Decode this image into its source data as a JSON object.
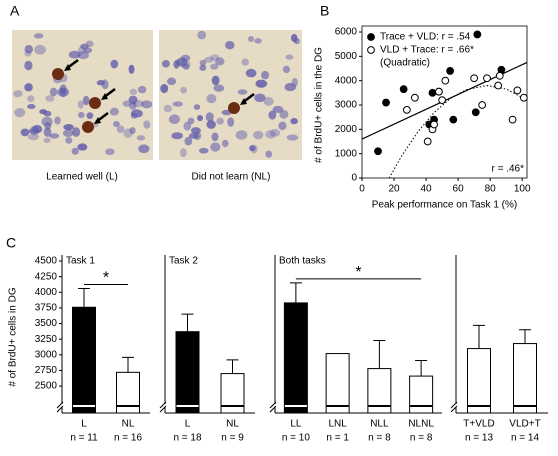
{
  "panel_labels": [
    "A",
    "B",
    "C"
  ],
  "images": {
    "captions": [
      "Learned well (L)",
      "Did not learn (NL)"
    ]
  },
  "chart_data": [
    {
      "type": "scatter",
      "xlabel": "Peak performance on Task 1 (%)",
      "ylabel": "# of BrdU+ cells in the DG",
      "xlim": [
        0,
        103
      ],
      "ylim": [
        0,
        6000
      ],
      "xticks": [
        0,
        20,
        40,
        60,
        80,
        100
      ],
      "yticks": [
        0,
        1000,
        2000,
        3000,
        4000,
        5000,
        6000
      ],
      "legend": "upper left",
      "series": [
        {
          "name": "Trace + VLD: r = .54",
          "color": "#000000",
          "marker": "filled",
          "x": [
            10,
            15,
            26,
            42,
            45,
            44,
            48,
            55,
            57,
            72,
            71,
            87
          ],
          "values": [
            1100,
            3100,
            3650,
            2200,
            2400,
            3500,
            3550,
            4400,
            2400,
            5900,
            2700,
            4450
          ]
        },
        {
          "name": "VLD + Trace: r = .66*",
          "color": "#000000",
          "marker": "open",
          "x": [
            28,
            33,
            41,
            44,
            45,
            48,
            50,
            52,
            70,
            75,
            78,
            85,
            86,
            94,
            97,
            101
          ],
          "values": [
            2800,
            3300,
            1500,
            2000,
            2200,
            3550,
            3200,
            4000,
            4100,
            3000,
            4100,
            3800,
            4200,
            2400,
            3600,
            3300
          ]
        }
      ],
      "legend_note": "(Quadratic)",
      "annotation": "r = .46*",
      "fits": [
        {
          "style": "solid",
          "x": [
            0,
            103
          ],
          "values": [
            1600,
            4750
          ]
        },
        {
          "style": "dotted",
          "x": [
            17,
            25,
            35,
            45,
            55,
            65,
            78,
            90,
            100
          ],
          "values": [
            0,
            935,
            1914,
            2689,
            3260,
            3628,
            3800,
            3653,
            3306
          ]
        }
      ]
    },
    {
      "type": "bar",
      "title": "Task 1",
      "ylabel": "# of BrdU+ cells in DG",
      "ylim": [
        2070,
        4500
      ],
      "yticks": [
        2500,
        2750,
        3000,
        3250,
        3500,
        3750,
        4000,
        4250,
        4500
      ],
      "categories": [
        "L",
        "NL"
      ],
      "n_labels": [
        "n = 11",
        "n = 16"
      ],
      "values": [
        3760,
        2720
      ],
      "errors": [
        300,
        240
      ],
      "colors": [
        "#000000",
        "#ffffff"
      ],
      "significance": "*",
      "axis_break": true
    },
    {
      "type": "bar",
      "title": "Task 2",
      "ylim": [
        2070,
        4500
      ],
      "categories": [
        "L",
        "NL"
      ],
      "n_labels": [
        "n = 18",
        "n = 9"
      ],
      "values": [
        3370,
        2700
      ],
      "errors": [
        280,
        220
      ],
      "colors": [
        "#000000",
        "#ffffff"
      ],
      "axis_break": true
    },
    {
      "type": "bar",
      "title": "Both tasks",
      "ylim": [
        2070,
        4500
      ],
      "categories": [
        "LL",
        "LNL",
        "NLL",
        "NLNL"
      ],
      "n_labels": [
        "n = 10",
        "n = 1",
        "n = 8",
        "n = 8"
      ],
      "values": [
        3830,
        3020,
        2780,
        2660
      ],
      "errors": [
        320,
        null,
        450,
        250
      ],
      "colors": [
        "#000000",
        "#ffffff",
        "#ffffff",
        "#ffffff"
      ],
      "significance": "*",
      "axis_break": true
    },
    {
      "type": "bar",
      "ylim": [
        2070,
        4500
      ],
      "categories": [
        "T+VLD",
        "VLD+T"
      ],
      "n_labels": [
        "n = 13",
        "n = 14"
      ],
      "values": [
        3100,
        3180
      ],
      "errors": [
        370,
        220
      ],
      "colors": [
        "#ffffff",
        "#ffffff"
      ],
      "axis_break": true
    }
  ]
}
